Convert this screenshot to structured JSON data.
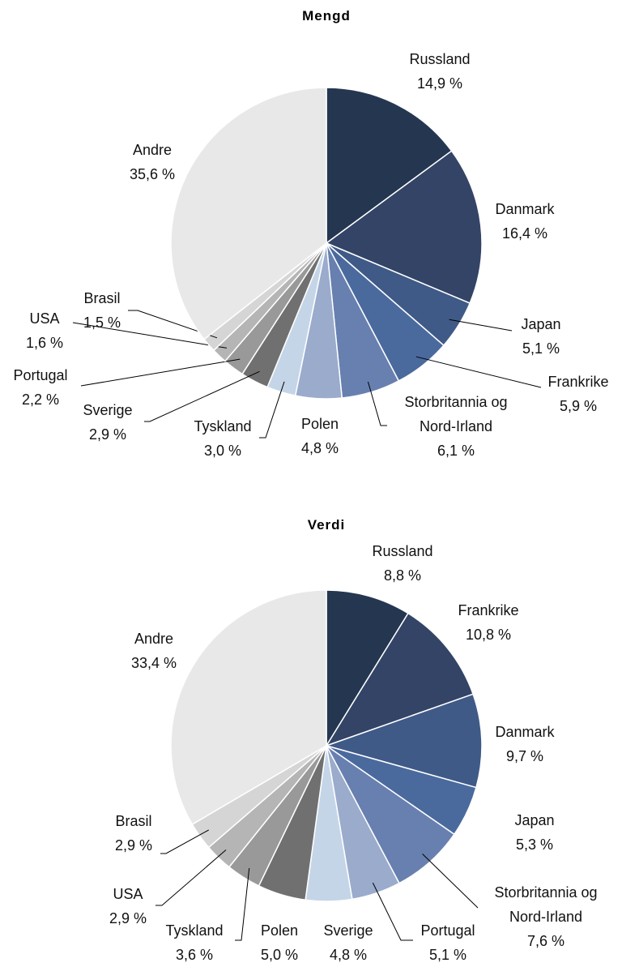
{
  "chart_data": [
    {
      "type": "pie",
      "title": "Mengd",
      "categories": [
        "Russland",
        "Danmark",
        "Japan",
        "Frankrike",
        "Storbritannia og Nord-Irland",
        "Polen",
        "Tyskland",
        "Sverige",
        "Portugal",
        "USA",
        "Brasil",
        "Andre"
      ],
      "values": [
        14.9,
        16.4,
        5.1,
        5.9,
        6.1,
        4.8,
        3.0,
        2.9,
        2.2,
        1.6,
        1.5,
        35.6
      ],
      "value_labels": [
        "14,9 %",
        "16,4 %",
        "5,1 %",
        "5,9 %",
        "6,1 %",
        "4,8 %",
        "3,0 %",
        "2,9 %",
        "2,2 %",
        "1,6 %",
        "1,5 %",
        "35,6 %"
      ],
      "colors": [
        "#253651",
        "#334466",
        "#3f5a87",
        "#4a6a9e",
        "#6880b0",
        "#9aabcc",
        "#c5d5e8",
        "#707070",
        "#999999",
        "#b5b5b5",
        "#d5d5d5",
        "#e8e8e8"
      ]
    },
    {
      "type": "pie",
      "title": "Verdi",
      "categories": [
        "Russland",
        "Frankrike",
        "Danmark",
        "Japan",
        "Storbritannia og Nord-Irland",
        "Portugal",
        "Sverige",
        "Polen",
        "Tyskland",
        "USA",
        "Brasil",
        "Andre"
      ],
      "values": [
        8.8,
        10.8,
        9.7,
        5.3,
        7.6,
        5.1,
        4.8,
        5.0,
        3.6,
        2.9,
        2.9,
        33.4
      ],
      "value_labels": [
        "8,8 %",
        "10,8 %",
        "9,7 %",
        "5,3 %",
        "7,6 %",
        "5,1 %",
        "4,8 %",
        "5,0 %",
        "3,6 %",
        "2,9 %",
        "2,9 %",
        "33,4 %"
      ],
      "colors": [
        "#253651",
        "#334466",
        "#3f5a87",
        "#4a6a9e",
        "#6880b0",
        "#9aabcc",
        "#c5d5e8",
        "#707070",
        "#999999",
        "#b5b5b5",
        "#d5d5d5",
        "#e8e8e8"
      ]
    }
  ]
}
